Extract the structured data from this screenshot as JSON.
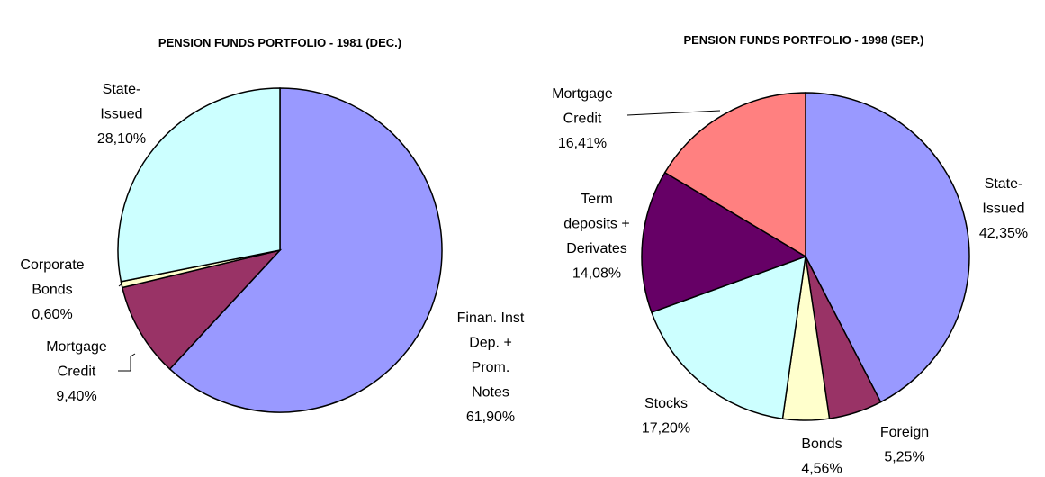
{
  "chart_data": [
    {
      "type": "pie",
      "title": "PENSION FUNDS PORTFOLIO - 1981 (DEC.)",
      "categories": [
        "Finan. Inst\nDep. +\nProm.\nNotes",
        "Mortgage\nCredit",
        "Corporate\nBonds",
        "State-\nIssued"
      ],
      "values": [
        61.9,
        9.4,
        0.6,
        28.1
      ],
      "value_labels": [
        "61,90%",
        "9,40%",
        "0,60%",
        "28,10%"
      ],
      "colors": [
        "#9999ff",
        "#993366",
        "#ffffcc",
        "#ccffff"
      ]
    },
    {
      "type": "pie",
      "title": "PENSION FUNDS PORTFOLIO - 1998 (SEP.)",
      "categories": [
        "State-\nIssued",
        "Foreign",
        "Bonds",
        "Stocks",
        "Term\ndeposits +\nDerivates",
        "Mortgage\nCredit"
      ],
      "values": [
        42.35,
        5.25,
        4.56,
        17.2,
        14.08,
        16.41
      ],
      "value_labels": [
        "42,35%",
        "5,25%",
        "4,56%",
        "17,20%",
        "14,08%",
        "16,41%"
      ],
      "colors": [
        "#9999ff",
        "#993366",
        "#ffffcc",
        "#ccffff",
        "#660066",
        "#ff8080"
      ]
    }
  ]
}
